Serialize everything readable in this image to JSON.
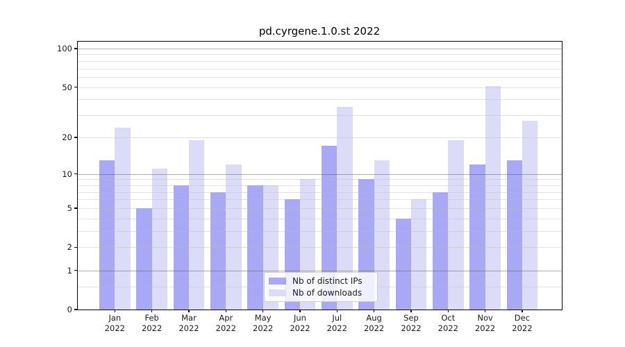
{
  "title": "pd.cyrgene.1.0.st 2022",
  "chart_data": {
    "type": "bar",
    "title": "pd.cyrgene.1.0.st 2022",
    "categories": [
      "Jan 2022",
      "Feb 2022",
      "Mar 2022",
      "Apr 2022",
      "May 2022",
      "Jun 2022",
      "Jul 2022",
      "Aug 2022",
      "Sep 2022",
      "Oct 2022",
      "Nov 2022",
      "Dec 2022"
    ],
    "series": [
      {
        "name": "Nb of distinct IPs",
        "color": "#a8a8f5",
        "values": [
          13,
          5,
          8,
          7,
          8,
          6,
          17,
          9,
          4,
          7,
          12,
          13
        ]
      },
      {
        "name": "Nb of downloads",
        "color": "#dcdcf8",
        "values": [
          24,
          11,
          19,
          12,
          8,
          9,
          35,
          13,
          6,
          19,
          51,
          27
        ]
      }
    ],
    "xlabel": "",
    "ylabel": "",
    "yscale": "log1p",
    "ylim": [
      0,
      113
    ],
    "ytick_values": [
      100,
      50,
      20,
      10,
      5,
      2,
      1,
      0
    ],
    "major_gridlines": [
      1,
      10,
      100
    ],
    "minor_gridlines": [
      0.5,
      2,
      3,
      4,
      5,
      6,
      7,
      8,
      9,
      20,
      30,
      40,
      50,
      60,
      70,
      80,
      90
    ],
    "grid": true,
    "legend_position": "lower center"
  },
  "colors": {
    "distinct_ips_bar": "#a8a8f5",
    "downloads_bar": "#dcdcf8",
    "major_grid": "#b0b0b0",
    "minor_grid": "#e8e8e8",
    "spine": "#000000",
    "text": "#1a1a1a",
    "legend_border": "#cccccc"
  }
}
